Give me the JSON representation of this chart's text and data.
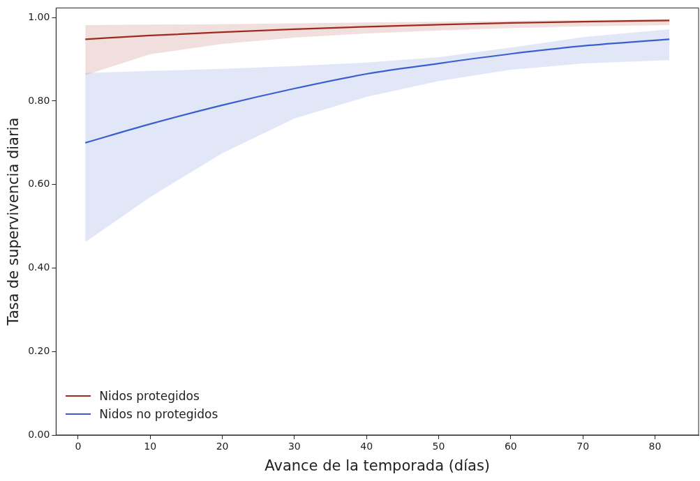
{
  "chart_data": {
    "type": "line",
    "xlabel": "Avance de la temporada (días)",
    "ylabel": "Tasa de supervivencia diaria",
    "x": [
      1,
      10,
      20,
      30,
      40,
      50,
      60,
      70,
      82
    ],
    "series": [
      {
        "name": "Nidos protegidos",
        "color": "#9e2a1e",
        "values": [
          0.948,
          0.957,
          0.965,
          0.972,
          0.978,
          0.983,
          0.987,
          0.99,
          0.993
        ],
        "lower": [
          0.862,
          0.912,
          0.937,
          0.952,
          0.962,
          0.969,
          0.975,
          0.979,
          0.982
        ],
        "upper": [
          0.982,
          0.983,
          0.984,
          0.986,
          0.988,
          0.99,
          0.992,
          0.994,
          0.996
        ]
      },
      {
        "name": "Nidos no protegidos",
        "color": "#3a5fcd",
        "values": [
          0.7,
          0.745,
          0.79,
          0.83,
          0.865,
          0.89,
          0.913,
          0.932,
          0.948
        ],
        "lower": [
          0.462,
          0.57,
          0.675,
          0.758,
          0.81,
          0.848,
          0.875,
          0.89,
          0.898
        ],
        "upper": [
          0.867,
          0.872,
          0.877,
          0.884,
          0.892,
          0.905,
          0.928,
          0.953,
          0.972
        ]
      }
    ],
    "xlim": [
      -3.05,
      86.05
    ],
    "xticks": [
      0,
      10,
      20,
      30,
      40,
      50,
      60,
      70,
      80
    ],
    "ylim": [
      0,
      1.023
    ],
    "yticks": [
      {
        "value": 0,
        "label": "0.00"
      },
      {
        "value": 0.2,
        "label": "0.20"
      },
      {
        "value": 0.4,
        "label": "0.40"
      },
      {
        "value": 0.6,
        "label": "0.60"
      },
      {
        "value": 0.8,
        "label": "0.80"
      },
      {
        "value": 1,
        "label": "1.00"
      }
    ],
    "grid": false,
    "legend": "bottom left",
    "marker": "none",
    "line_style": "solid"
  }
}
